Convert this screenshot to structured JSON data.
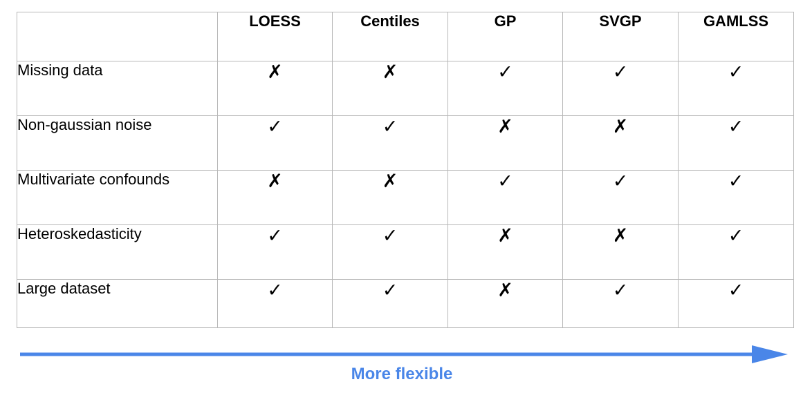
{
  "table": {
    "corner_label": "",
    "methods": [
      "LOESS",
      "Centiles",
      "GP",
      "SVGP",
      "GAMLSS"
    ],
    "symbols": {
      "yes": "✓",
      "no": "✗"
    },
    "rows": [
      {
        "label": "Missing data",
        "values": [
          "✗",
          "✗",
          "✓",
          "✓",
          "✓"
        ]
      },
      {
        "label": "Non-gaussian noise",
        "values": [
          "✓",
          "✓",
          "✗",
          "✗",
          "✓"
        ]
      },
      {
        "label": "Multivariate confounds",
        "values": [
          "✗",
          "✗",
          "✓",
          "✓",
          "✓"
        ]
      },
      {
        "label": "Heteroskedasticity",
        "values": [
          "✓",
          "✓",
          "✗",
          "✗",
          "✓"
        ]
      },
      {
        "label": "Large dataset",
        "values": [
          "✓",
          "✓",
          "✗",
          "✓",
          "✓"
        ]
      }
    ]
  },
  "flexibility": {
    "label": "More flexible",
    "arrow_icon": "right-arrow-icon",
    "color": "#4a86e8"
  },
  "colors": {
    "grid_border": "#b7b7b7",
    "text": "#000000",
    "accent": "#4a86e8"
  }
}
